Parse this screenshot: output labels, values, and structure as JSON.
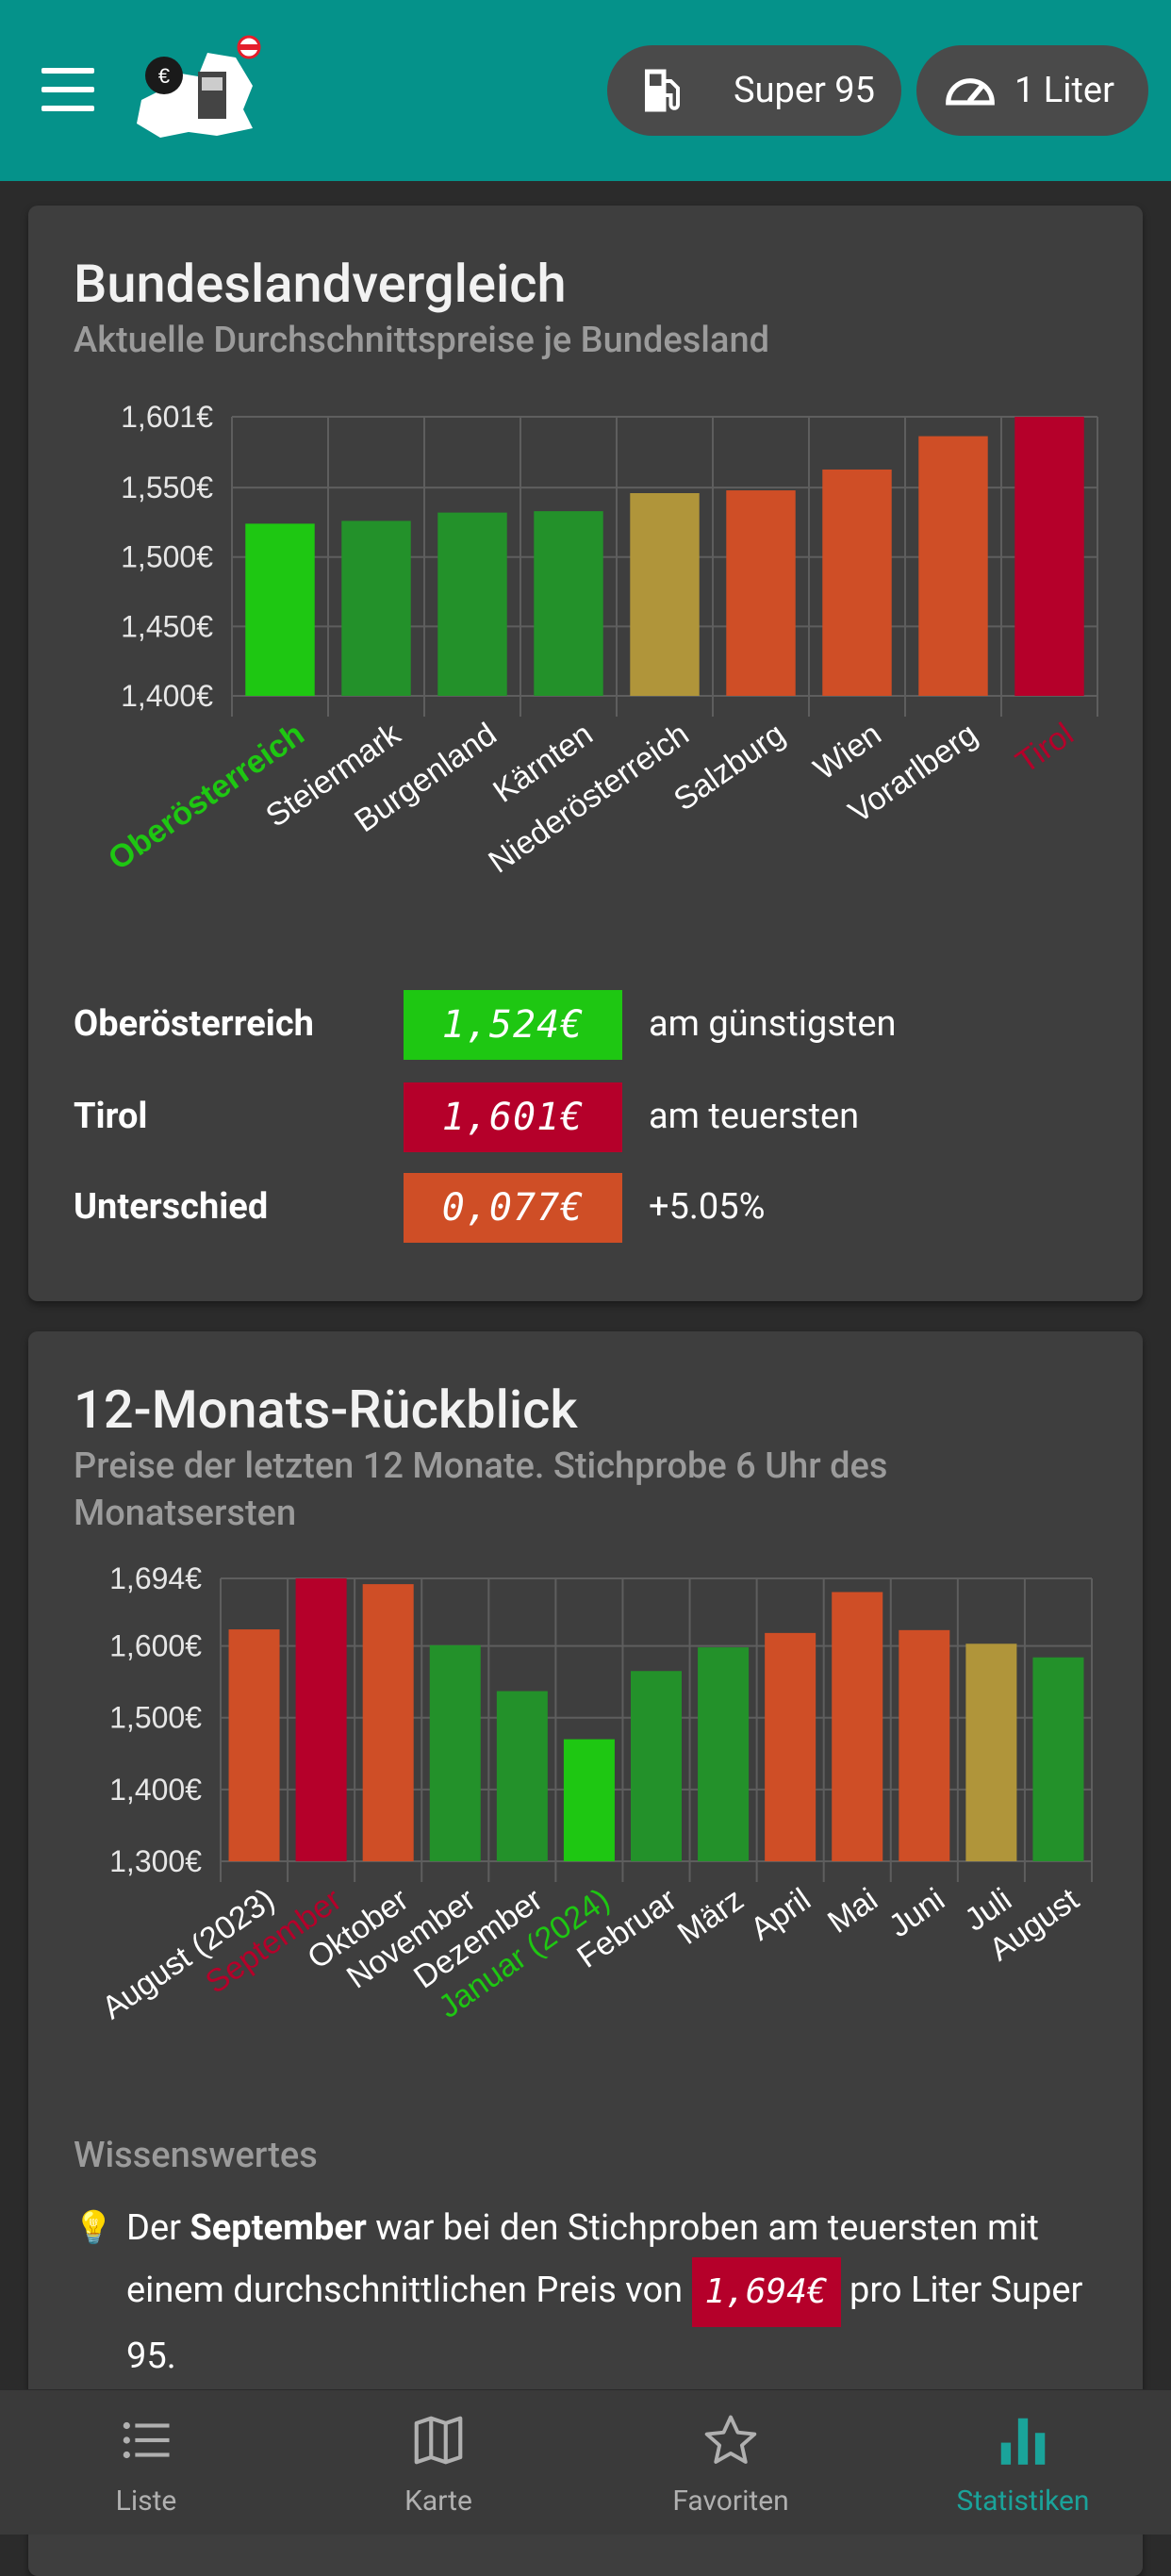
{
  "topbar": {
    "fuel_label": "Super 95",
    "amount_label": "1 Liter",
    "background": "#05928a"
  },
  "card_states": {
    "title": "Bundeslandvergleich",
    "subtitle": "Aktuelle Durchschnittspreise je Bundesland",
    "stats": [
      {
        "label": "Oberösterreich",
        "value": "1,524€",
        "note": "am günstigsten",
        "color": "#1ec712"
      },
      {
        "label": "Tirol",
        "value": "1,601€",
        "note": "am teuersten",
        "color": "#b5002a"
      },
      {
        "label": "Unterschied",
        "value": "0,077€",
        "note": "+5.05%",
        "color": "#cf4e26"
      }
    ]
  },
  "card_months": {
    "title": "12-Monats-Rückblick",
    "subtitle": "Preise der letzten 12 Monate. Stichprobe 6 Uhr des Monatsersten",
    "section_heading": "Wissenswertes",
    "fact": {
      "pre": "Der ",
      "month": "September",
      "mid": " war bei den Stichproben am teuersten mit einem durchschnittlichen Preis von ",
      "price": "1,694€",
      "post": " pro Liter Super 95."
    }
  },
  "chart_data": [
    {
      "type": "bar",
      "categories": [
        "Oberösterreich",
        "Steiermark",
        "Burgenland",
        "Kärnten",
        "Niederösterreich",
        "Salzburg",
        "Wien",
        "Vorarlberg",
        "Tirol"
      ],
      "values": [
        1.524,
        1.526,
        1.532,
        1.533,
        1.546,
        1.548,
        1.563,
        1.587,
        1.601
      ],
      "colors": [
        "#1ec712",
        "#23912a",
        "#23912a",
        "#23912a",
        "#b0953a",
        "#cf4e26",
        "#cf4e26",
        "#cf4e26",
        "#b5002a"
      ],
      "label_colors": [
        "#1ec712",
        "#ffffff",
        "#ffffff",
        "#ffffff",
        "#ffffff",
        "#ffffff",
        "#ffffff",
        "#ffffff",
        "#b5002a"
      ],
      "yticks": [
        "1,601€",
        "1,550€",
        "1,500€",
        "1,450€",
        "1,400€"
      ],
      "ytick_values": [
        1.601,
        1.55,
        1.5,
        1.45,
        1.4
      ],
      "ylim": [
        1.4,
        1.601
      ],
      "grid": true
    },
    {
      "type": "bar",
      "categories": [
        "August (2023)",
        "September",
        "Oktober",
        "November",
        "Dezember",
        "Januar (2024)",
        "Februar",
        "März",
        "April",
        "Mai",
        "Juni",
        "Juli",
        "August"
      ],
      "values": [
        1.623,
        1.694,
        1.686,
        1.601,
        1.537,
        1.47,
        1.565,
        1.598,
        1.618,
        1.675,
        1.622,
        1.603,
        1.584
      ],
      "colors": [
        "#cf4e26",
        "#b5002a",
        "#cf4e26",
        "#23912a",
        "#23912a",
        "#1ec712",
        "#23912a",
        "#23912a",
        "#cf4e26",
        "#cf4e26",
        "#cf4e26",
        "#b0953a",
        "#23912a"
      ],
      "label_colors": [
        "#ffffff",
        "#b5002a",
        "#ffffff",
        "#ffffff",
        "#ffffff",
        "#1ec712",
        "#ffffff",
        "#ffffff",
        "#ffffff",
        "#ffffff",
        "#ffffff",
        "#ffffff",
        "#ffffff"
      ],
      "yticks": [
        "1,694€",
        "1,600€",
        "1,500€",
        "1,400€",
        "1,300€"
      ],
      "ytick_values": [
        1.694,
        1.6,
        1.5,
        1.4,
        1.3
      ],
      "ylim": [
        1.3,
        1.694
      ],
      "grid": true
    }
  ],
  "bottomnav": {
    "items": [
      {
        "label": "Liste",
        "icon": "list-icon"
      },
      {
        "label": "Karte",
        "icon": "map-icon"
      },
      {
        "label": "Favoriten",
        "icon": "star-icon"
      },
      {
        "label": "Statistiken",
        "icon": "bar-chart-icon"
      }
    ],
    "active_color": "#1aa39a"
  }
}
